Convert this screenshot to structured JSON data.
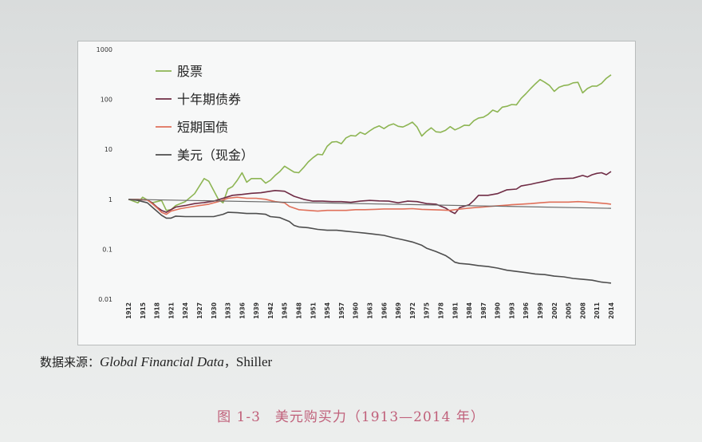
{
  "chart_data": {
    "type": "line",
    "yscale": "log",
    "ylim": [
      0.01,
      1000
    ],
    "y_ticks": [
      "1000",
      "100",
      "10",
      "1",
      "0.1",
      "0.01"
    ],
    "x_ticks": [
      "1912",
      "1915",
      "1918",
      "1921",
      "1924",
      "1927",
      "1930",
      "1933",
      "1936",
      "1939",
      "1942",
      "1945",
      "1948",
      "1951",
      "1954",
      "1957",
      "1960",
      "1963",
      "1966",
      "1969",
      "1972",
      "1975",
      "1978",
      "1981",
      "1984",
      "1987",
      "1990",
      "1993",
      "1996",
      "1999",
      "2002",
      "2005",
      "2008",
      "2011",
      "2014"
    ],
    "grid": false,
    "legend_placement": "top-left",
    "series": [
      {
        "name": "股票",
        "color": "#8db553",
        "points": [
          [
            1912,
            1
          ],
          [
            1914,
            0.85
          ],
          [
            1915,
            1.1
          ],
          [
            1917,
            0.85
          ],
          [
            1919,
            0.95
          ],
          [
            1920,
            0.6
          ],
          [
            1921,
            0.62
          ],
          [
            1922,
            0.75
          ],
          [
            1924,
            0.9
          ],
          [
            1926,
            1.3
          ],
          [
            1928,
            2.6
          ],
          [
            1929,
            2.3
          ],
          [
            1931,
            1.0
          ],
          [
            1932,
            0.85
          ],
          [
            1933,
            1.6
          ],
          [
            1934,
            1.8
          ],
          [
            1935,
            2.4
          ],
          [
            1936,
            3.4
          ],
          [
            1937,
            2.2
          ],
          [
            1938,
            2.6
          ],
          [
            1940,
            2.6
          ],
          [
            1941,
            2.1
          ],
          [
            1942,
            2.4
          ],
          [
            1943,
            3.0
          ],
          [
            1944,
            3.6
          ],
          [
            1945,
            4.6
          ],
          [
            1946,
            4.0
          ],
          [
            1947,
            3.5
          ],
          [
            1948,
            3.4
          ],
          [
            1949,
            4.3
          ],
          [
            1950,
            5.6
          ],
          [
            1951,
            6.8
          ],
          [
            1952,
            8.0
          ],
          [
            1953,
            7.8
          ],
          [
            1954,
            11.5
          ],
          [
            1955,
            14
          ],
          [
            1956,
            14.3
          ],
          [
            1957,
            13
          ],
          [
            1958,
            17
          ],
          [
            1959,
            19
          ],
          [
            1960,
            18.5
          ],
          [
            1961,
            22
          ],
          [
            1962,
            20
          ],
          [
            1963,
            23.5
          ],
          [
            1964,
            27
          ],
          [
            1965,
            29.5
          ],
          [
            1966,
            26
          ],
          [
            1967,
            30
          ],
          [
            1968,
            32.5
          ],
          [
            1969,
            29
          ],
          [
            1970,
            28
          ],
          [
            1971,
            31
          ],
          [
            1972,
            35
          ],
          [
            1973,
            28
          ],
          [
            1974,
            18.5
          ],
          [
            1975,
            23
          ],
          [
            1976,
            27
          ],
          [
            1977,
            22.5
          ],
          [
            1978,
            22
          ],
          [
            1979,
            24
          ],
          [
            1980,
            28.5
          ],
          [
            1981,
            24.5
          ],
          [
            1982,
            27
          ],
          [
            1983,
            30.5
          ],
          [
            1984,
            30
          ],
          [
            1985,
            37.5
          ],
          [
            1986,
            42.5
          ],
          [
            1987,
            44
          ],
          [
            1988,
            50
          ],
          [
            1989,
            61
          ],
          [
            1990,
            56
          ],
          [
            1991,
            70
          ],
          [
            1992,
            73
          ],
          [
            1993,
            79
          ],
          [
            1994,
            78
          ],
          [
            1995,
            105
          ],
          [
            1996,
            130
          ],
          [
            1997,
            165
          ],
          [
            1998,
            205
          ],
          [
            1999,
            250
          ],
          [
            2000,
            220
          ],
          [
            2001,
            190
          ],
          [
            2002,
            145
          ],
          [
            2003,
            175
          ],
          [
            2004,
            190
          ],
          [
            2005,
            195
          ],
          [
            2006,
            215
          ],
          [
            2007,
            220
          ],
          [
            2008,
            135
          ],
          [
            2009,
            165
          ],
          [
            2010,
            185
          ],
          [
            2011,
            185
          ],
          [
            2012,
            210
          ],
          [
            2013,
            265
          ],
          [
            2014,
            310
          ]
        ]
      },
      {
        "name": "十年期债券",
        "color": "#6f2c45",
        "points": [
          [
            1912,
            1
          ],
          [
            1914,
            0.98
          ],
          [
            1916,
            0.97
          ],
          [
            1917,
            0.85
          ],
          [
            1918,
            0.7
          ],
          [
            1919,
            0.6
          ],
          [
            1920,
            0.55
          ],
          [
            1922,
            0.7
          ],
          [
            1924,
            0.75
          ],
          [
            1926,
            0.82
          ],
          [
            1928,
            0.86
          ],
          [
            1930,
            0.92
          ],
          [
            1932,
            1.05
          ],
          [
            1934,
            1.2
          ],
          [
            1936,
            1.25
          ],
          [
            1938,
            1.32
          ],
          [
            1940,
            1.35
          ],
          [
            1942,
            1.45
          ],
          [
            1943,
            1.5
          ],
          [
            1945,
            1.45
          ],
          [
            1947,
            1.15
          ],
          [
            1949,
            1.0
          ],
          [
            1951,
            0.92
          ],
          [
            1953,
            0.92
          ],
          [
            1955,
            0.9
          ],
          [
            1957,
            0.9
          ],
          [
            1959,
            0.87
          ],
          [
            1961,
            0.92
          ],
          [
            1963,
            0.95
          ],
          [
            1965,
            0.93
          ],
          [
            1967,
            0.92
          ],
          [
            1969,
            0.85
          ],
          [
            1971,
            0.92
          ],
          [
            1973,
            0.9
          ],
          [
            1975,
            0.82
          ],
          [
            1977,
            0.8
          ],
          [
            1979,
            0.67
          ],
          [
            1980,
            0.58
          ],
          [
            1981,
            0.52
          ],
          [
            1982,
            0.68
          ],
          [
            1984,
            0.78
          ],
          [
            1985,
            0.95
          ],
          [
            1986,
            1.2
          ],
          [
            1988,
            1.2
          ],
          [
            1990,
            1.3
          ],
          [
            1992,
            1.55
          ],
          [
            1994,
            1.6
          ],
          [
            1995,
            1.85
          ],
          [
            1997,
            2.0
          ],
          [
            1998,
            2.1
          ],
          [
            2000,
            2.3
          ],
          [
            2002,
            2.55
          ],
          [
            2004,
            2.6
          ],
          [
            2006,
            2.65
          ],
          [
            2008,
            3.0
          ],
          [
            2009,
            2.8
          ],
          [
            2010,
            3.1
          ],
          [
            2011,
            3.3
          ],
          [
            2012,
            3.4
          ],
          [
            2013,
            3.1
          ],
          [
            2014,
            3.6
          ]
        ]
      },
      {
        "name": "短期国债",
        "color": "#e0705a",
        "points": [
          [
            1912,
            1
          ],
          [
            1914,
            1.0
          ],
          [
            1916,
            0.97
          ],
          [
            1917,
            0.82
          ],
          [
            1918,
            0.68
          ],
          [
            1919,
            0.55
          ],
          [
            1920,
            0.5
          ],
          [
            1921,
            0.58
          ],
          [
            1923,
            0.65
          ],
          [
            1925,
            0.7
          ],
          [
            1927,
            0.75
          ],
          [
            1929,
            0.8
          ],
          [
            1931,
            0.9
          ],
          [
            1933,
            1.05
          ],
          [
            1935,
            1.1
          ],
          [
            1937,
            1.05
          ],
          [
            1939,
            1.05
          ],
          [
            1941,
            1.0
          ],
          [
            1943,
            0.9
          ],
          [
            1945,
            0.85
          ],
          [
            1946,
            0.72
          ],
          [
            1948,
            0.62
          ],
          [
            1950,
            0.6
          ],
          [
            1952,
            0.58
          ],
          [
            1954,
            0.6
          ],
          [
            1956,
            0.6
          ],
          [
            1958,
            0.6
          ],
          [
            1960,
            0.62
          ],
          [
            1962,
            0.62
          ],
          [
            1964,
            0.63
          ],
          [
            1966,
            0.64
          ],
          [
            1968,
            0.64
          ],
          [
            1970,
            0.64
          ],
          [
            1972,
            0.65
          ],
          [
            1974,
            0.63
          ],
          [
            1976,
            0.62
          ],
          [
            1978,
            0.61
          ],
          [
            1980,
            0.6
          ],
          [
            1981,
            0.62
          ],
          [
            1983,
            0.65
          ],
          [
            1985,
            0.68
          ],
          [
            1987,
            0.7
          ],
          [
            1989,
            0.73
          ],
          [
            1991,
            0.75
          ],
          [
            1993,
            0.78
          ],
          [
            1995,
            0.8
          ],
          [
            1997,
            0.82
          ],
          [
            1999,
            0.85
          ],
          [
            2001,
            0.88
          ],
          [
            2003,
            0.88
          ],
          [
            2005,
            0.88
          ],
          [
            2007,
            0.9
          ],
          [
            2009,
            0.88
          ],
          [
            2011,
            0.85
          ],
          [
            2013,
            0.82
          ],
          [
            2014,
            0.8
          ]
        ]
      },
      {
        "name": "美元（现金）",
        "color": "#4e4e4e",
        "points": [
          [
            1912,
            1
          ],
          [
            1914,
            0.95
          ],
          [
            1916,
            0.85
          ],
          [
            1917,
            0.7
          ],
          [
            1918,
            0.58
          ],
          [
            1919,
            0.48
          ],
          [
            1920,
            0.42
          ],
          [
            1921,
            0.42
          ],
          [
            1922,
            0.46
          ],
          [
            1924,
            0.45
          ],
          [
            1926,
            0.45
          ],
          [
            1928,
            0.45
          ],
          [
            1930,
            0.45
          ],
          [
            1932,
            0.5
          ],
          [
            1933,
            0.55
          ],
          [
            1935,
            0.54
          ],
          [
            1937,
            0.52
          ],
          [
            1939,
            0.52
          ],
          [
            1941,
            0.5
          ],
          [
            1942,
            0.45
          ],
          [
            1944,
            0.43
          ],
          [
            1946,
            0.36
          ],
          [
            1947,
            0.3
          ],
          [
            1948,
            0.28
          ],
          [
            1950,
            0.27
          ],
          [
            1952,
            0.25
          ],
          [
            1954,
            0.24
          ],
          [
            1956,
            0.24
          ],
          [
            1958,
            0.23
          ],
          [
            1960,
            0.22
          ],
          [
            1962,
            0.21
          ],
          [
            1964,
            0.2
          ],
          [
            1966,
            0.19
          ],
          [
            1968,
            0.17
          ],
          [
            1970,
            0.155
          ],
          [
            1972,
            0.14
          ],
          [
            1974,
            0.12
          ],
          [
            1975,
            0.105
          ],
          [
            1977,
            0.09
          ],
          [
            1979,
            0.075
          ],
          [
            1980,
            0.065
          ],
          [
            1981,
            0.055
          ],
          [
            1982,
            0.052
          ],
          [
            1984,
            0.05
          ],
          [
            1986,
            0.047
          ],
          [
            1988,
            0.045
          ],
          [
            1990,
            0.042
          ],
          [
            1992,
            0.038
          ],
          [
            1994,
            0.036
          ],
          [
            1996,
            0.034
          ],
          [
            1998,
            0.032
          ],
          [
            2000,
            0.031
          ],
          [
            2002,
            0.029
          ],
          [
            2004,
            0.028
          ],
          [
            2006,
            0.026
          ],
          [
            2008,
            0.025
          ],
          [
            2010,
            0.024
          ],
          [
            2012,
            0.022
          ],
          [
            2014,
            0.021
          ]
        ]
      },
      {
        "name": "",
        "color": "#6a6a6a",
        "points": [
          [
            1912,
            1.0
          ],
          [
            2014,
            0.66
          ]
        ]
      }
    ]
  },
  "source_note": {
    "label": "数据来源：",
    "italic": "Global Financial Data",
    "separator": "，",
    "plain": "Shiller"
  },
  "caption": "图 1-3　美元购买力（1913—2014 年）"
}
